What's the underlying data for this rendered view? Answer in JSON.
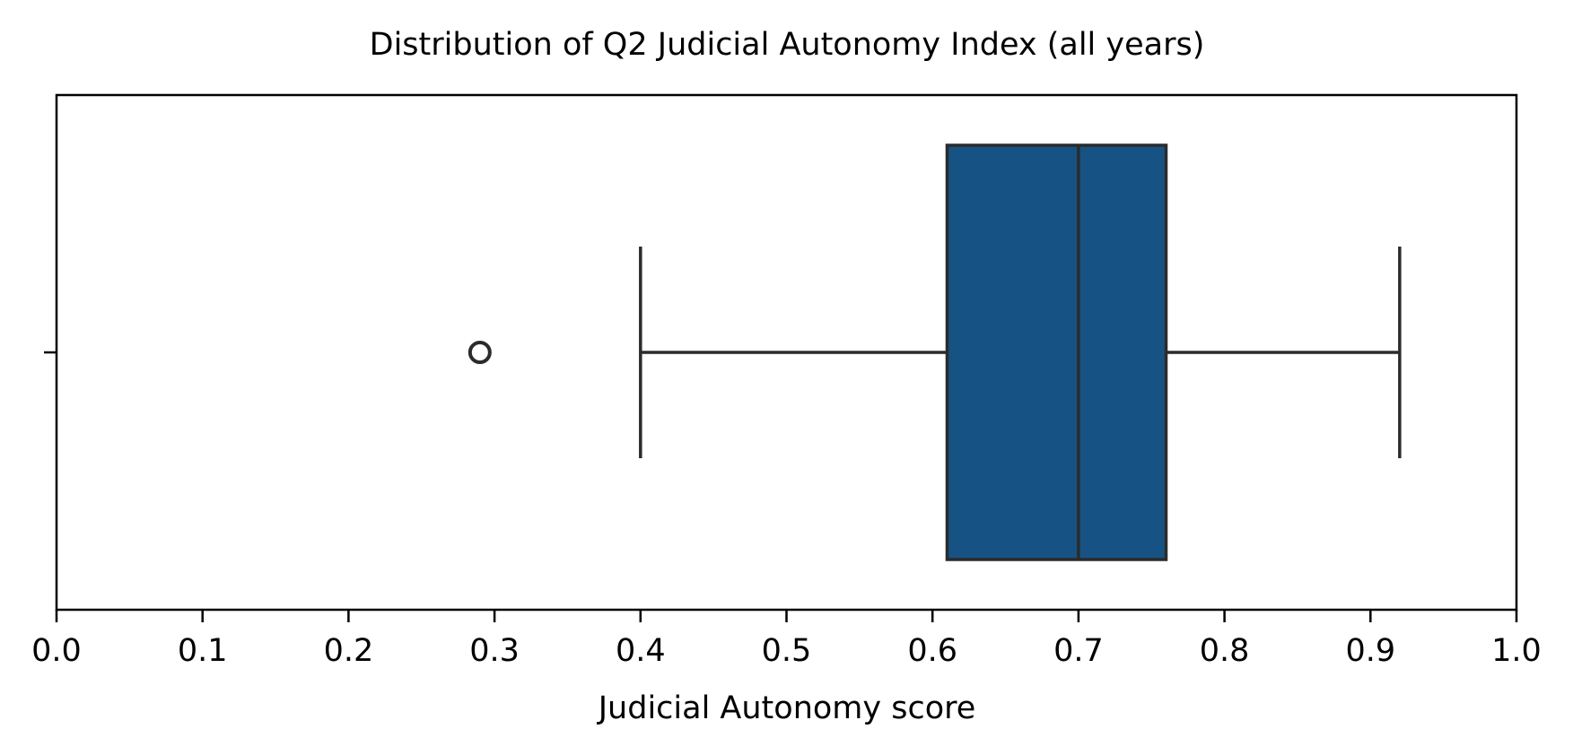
{
  "chart_data": {
    "type": "box",
    "orientation": "horizontal",
    "title": "Distribution of Q2 Judicial Autonomy Index (all years)",
    "xlabel": "Judicial Autonomy score",
    "ylabel": "",
    "xlim": [
      0.0,
      1.0
    ],
    "xticks": [
      "0.0",
      "0.1",
      "0.2",
      "0.3",
      "0.4",
      "0.5",
      "0.6",
      "0.7",
      "0.8",
      "0.9",
      "1.0"
    ],
    "grid": false,
    "box": {
      "whisker_low": 0.4,
      "q1": 0.61,
      "median": 0.7,
      "q3": 0.76,
      "whisker_high": 0.92,
      "outliers": [
        0.29
      ]
    },
    "colors": {
      "box_fill": "#165384",
      "line": "#2b2b2b"
    }
  }
}
